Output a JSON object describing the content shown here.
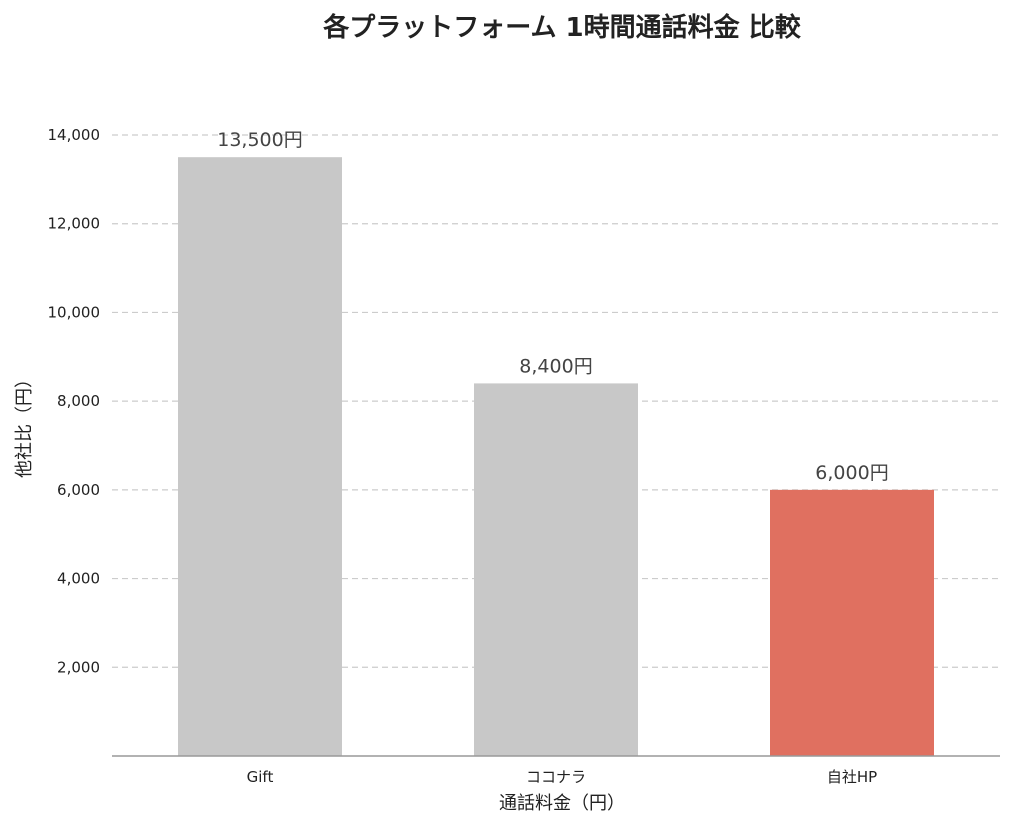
{
  "chart_data": {
    "type": "bar",
    "title": "各プラットフォーム 1時間通話料金 比較",
    "xlabel": "通話料金（円）",
    "ylabel": "他社比（円）",
    "categories": [
      "Gift",
      "ココナラ",
      "自社HP"
    ],
    "values": [
      13500,
      8400,
      6000
    ],
    "data_labels": [
      "13,500円",
      "8,400円",
      "6,000円"
    ],
    "bar_colors": [
      "#c8c8c8",
      "#c8c8c8",
      "#e07060"
    ],
    "ylim": [
      0,
      14000
    ],
    "yticks": [
      2000,
      4000,
      6000,
      8000,
      10000,
      12000,
      14000
    ],
    "ytick_labels": [
      "2,000",
      "4,000",
      "6,000",
      "8,000",
      "10,000",
      "12,000",
      "14,000"
    ],
    "grid": true,
    "legend": "none"
  }
}
